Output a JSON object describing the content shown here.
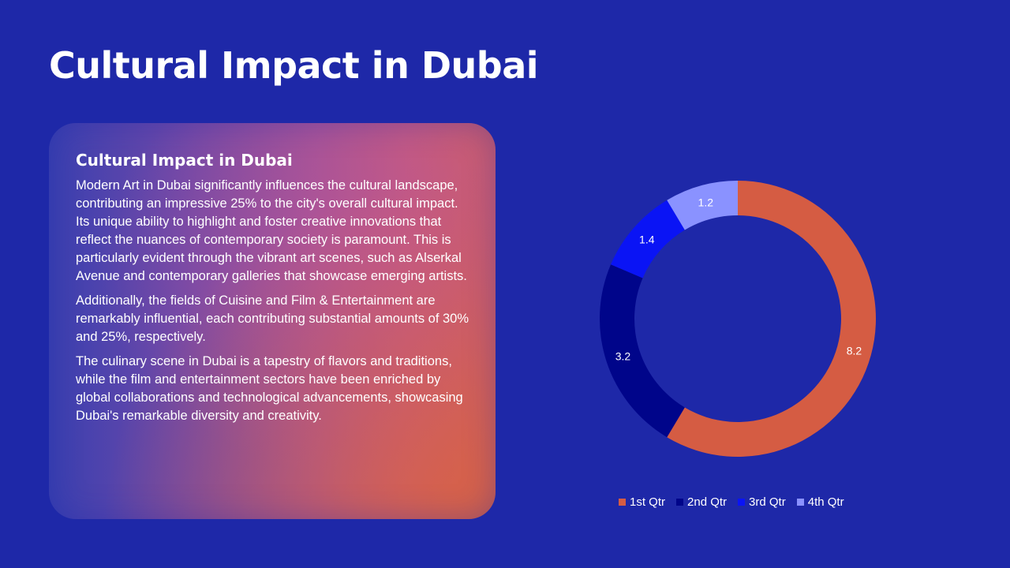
{
  "slide": {
    "title": "Cultural Impact in Dubai",
    "background": "#1e28a8"
  },
  "card": {
    "heading": "Cultural Impact in Dubai",
    "paragraphs": [
      "Modern Art in Dubai significantly influences the cultural landscape, contributing an impressive 25% to the city's overall cultural impact. Its unique ability to highlight and foster creative innovations that reflect the nuances of contemporary society is paramount. This is particularly evident through the vibrant art scenes, such as Alserkal Avenue and contemporary galleries that showcase emerging artists.",
      "Additionally, the fields of Cuisine and Film & Entertainment are remarkably influential, each contributing substantial amounts of 30% and 25%, respectively.",
      "The culinary scene in Dubai is a tapestry of flavors and traditions, while the film and entertainment sectors have been enriched by global collaborations and technological advancements, showcasing Dubai's remarkable diversity and creativity."
    ]
  },
  "chart_data": {
    "type": "pie",
    "subtype": "doughnut",
    "categories": [
      "1st Qtr",
      "2nd Qtr",
      "3rd Qtr",
      "4th Qtr"
    ],
    "values": [
      8.2,
      3.2,
      1.4,
      1.2
    ],
    "data_labels": [
      "8.2",
      "3.2",
      "1.4",
      "1.2"
    ],
    "colors": [
      "#d55c43",
      "#00058a",
      "#0a14f5",
      "#8a92ff"
    ],
    "legend_position": "bottom"
  }
}
